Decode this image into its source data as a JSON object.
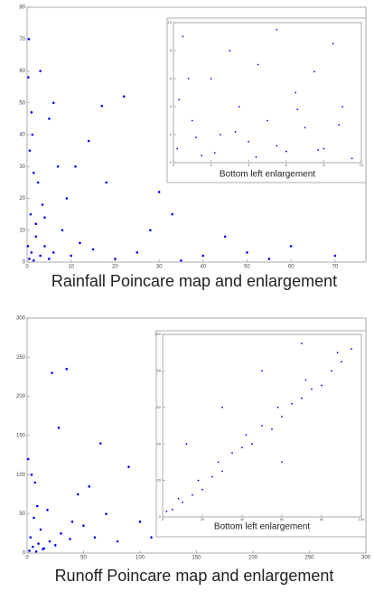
{
  "chart_data": [
    {
      "type": "scatter",
      "title": "Rainfall Poincare map and enlargement",
      "color": "#0000ff",
      "xlim": [
        0,
        77
      ],
      "ylim": [
        0,
        80
      ],
      "xticks": [
        0,
        10,
        20,
        30,
        40,
        50,
        60,
        70
      ],
      "yticks": [
        0,
        10,
        20,
        30,
        40,
        50,
        60,
        70,
        80
      ],
      "x": [
        0.5,
        1,
        1.5,
        2,
        3,
        0.8,
        4,
        5,
        2.5,
        6,
        1.2,
        8,
        10,
        3.5,
        12,
        0.3,
        15,
        7,
        20,
        1,
        22,
        25,
        2,
        30,
        0.6,
        35,
        5,
        40,
        9,
        45,
        1.5,
        50,
        3,
        55,
        60,
        4,
        70,
        0.4,
        14,
        18,
        28,
        11,
        6,
        0.2,
        17,
        33
      ],
      "y": [
        1,
        3,
        0.5,
        8,
        2,
        15,
        5,
        1,
        25,
        3,
        40,
        10,
        2,
        18,
        6,
        58,
        4,
        30,
        1,
        47,
        52,
        3,
        12,
        22,
        35,
        0.5,
        45,
        2,
        20,
        8,
        28,
        3,
        60,
        1,
        5,
        14,
        2,
        70,
        38,
        25,
        10,
        30,
        50,
        5,
        49,
        15
      ]
    },
    {
      "type": "scatter",
      "title": "Bottom left enlargement",
      "color": "#0000ff",
      "xlim": [
        0,
        10
      ],
      "ylim": [
        0,
        10
      ],
      "xticks": [
        0,
        2,
        4,
        6,
        8,
        10
      ],
      "yticks": [
        0,
        2,
        4,
        6,
        8,
        10
      ],
      "x": [
        0.2,
        0.5,
        1,
        1.5,
        2,
        2.5,
        3,
        3.5,
        4,
        4.5,
        5,
        5.5,
        6,
        6.5,
        7,
        7.5,
        8,
        8.5,
        9,
        9.5,
        0.3,
        1.2,
        2.2,
        3.3,
        4.4,
        5.5,
        6.6,
        7.7,
        8.8,
        0.8
      ],
      "y": [
        1,
        9,
        3,
        0.5,
        6,
        2,
        8,
        4,
        1.5,
        7,
        3,
        9.5,
        0.8,
        5,
        2.5,
        6.5,
        1,
        8.5,
        4,
        0.3,
        4.5,
        1.8,
        0.7,
        2.2,
        0.4,
        1.2,
        3.8,
        0.9,
        2.7,
        6
      ]
    },
    {
      "type": "scatter",
      "title": "Runoff Poincare map and enlargement",
      "color": "#0000ff",
      "xlim": [
        0,
        300
      ],
      "ylim": [
        0,
        300
      ],
      "xticks": [
        0,
        50,
        100,
        150,
        200,
        250,
        300
      ],
      "yticks": [
        0,
        50,
        100,
        150,
        200,
        250,
        300
      ],
      "x": [
        2,
        5,
        8,
        10,
        3,
        15,
        20,
        12,
        25,
        6,
        30,
        40,
        4,
        50,
        18,
        60,
        35,
        1,
        70,
        80,
        45,
        100,
        22,
        120,
        90,
        150,
        28,
        170,
        210,
        230,
        7,
        65,
        110,
        55,
        14,
        130,
        38,
        9
      ],
      "y": [
        3,
        8,
        2,
        12,
        20,
        6,
        15,
        30,
        10,
        45,
        25,
        40,
        100,
        35,
        55,
        20,
        235,
        120,
        50,
        15,
        75,
        40,
        230,
        60,
        110,
        30,
        160,
        70,
        35,
        25,
        90,
        140,
        20,
        85,
        5,
        65,
        18,
        60
      ]
    },
    {
      "type": "scatter",
      "title": "Bottom left enlargement",
      "color": "#0000ff",
      "xlim": [
        0,
        100
      ],
      "ylim": [
        0,
        100
      ],
      "xticks": [
        0,
        20,
        40,
        60,
        80,
        100
      ],
      "yticks": [
        0,
        20,
        40,
        60,
        80,
        100
      ],
      "x": [
        2,
        5,
        8,
        10,
        15,
        18,
        20,
        25,
        28,
        30,
        35,
        40,
        42,
        45,
        50,
        55,
        58,
        60,
        65,
        70,
        72,
        75,
        80,
        85,
        88,
        90,
        95,
        30,
        50,
        70,
        12,
        60
      ],
      "y": [
        3,
        4,
        10,
        8,
        12,
        20,
        15,
        22,
        30,
        25,
        35,
        38,
        45,
        40,
        50,
        48,
        60,
        55,
        62,
        65,
        75,
        70,
        72,
        80,
        90,
        85,
        92,
        60,
        80,
        95,
        40,
        30
      ]
    }
  ]
}
